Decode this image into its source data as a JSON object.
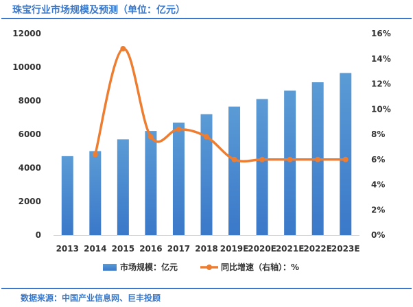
{
  "header": {
    "title": "珠宝行业市场规模及预测（单位：亿元）"
  },
  "footer": {
    "source": "数据来源：中国产业信息网、巨丰投顾"
  },
  "colors": {
    "bar": "#5b9bd5",
    "bar_dark": "#3a78c9",
    "line": "#ed7d31",
    "accent": "#3a78c9"
  },
  "chart_data": {
    "type": "bar",
    "categories": [
      "2013",
      "2014",
      "2015",
      "2016",
      "2017",
      "2018",
      "2019E",
      "2020E",
      "2021E",
      "2022E",
      "2023E"
    ],
    "series": [
      {
        "name": "市场规模：亿元",
        "type": "bar",
        "axis": "left",
        "values": [
          4700,
          5000,
          5700,
          6200,
          6700,
          7200,
          7650,
          8100,
          8600,
          9100,
          9650
        ]
      },
      {
        "name": "同比增速（右轴）：%",
        "type": "line",
        "axis": "right",
        "values": [
          null,
          6.4,
          14.8,
          7.8,
          8.4,
          7.8,
          6.0,
          6.0,
          6.0,
          6.0,
          6.0
        ]
      }
    ],
    "y_left": {
      "min": 0,
      "max": 12000,
      "ticks": [
        0,
        2000,
        4000,
        6000,
        8000,
        10000,
        12000
      ]
    },
    "y_right": {
      "min": 0,
      "max": 16,
      "ticks": [
        "0%",
        "2%",
        "4%",
        "6%",
        "8%",
        "10%",
        "12%",
        "14%",
        "16%"
      ]
    },
    "grid": false,
    "legend": "bottom"
  }
}
